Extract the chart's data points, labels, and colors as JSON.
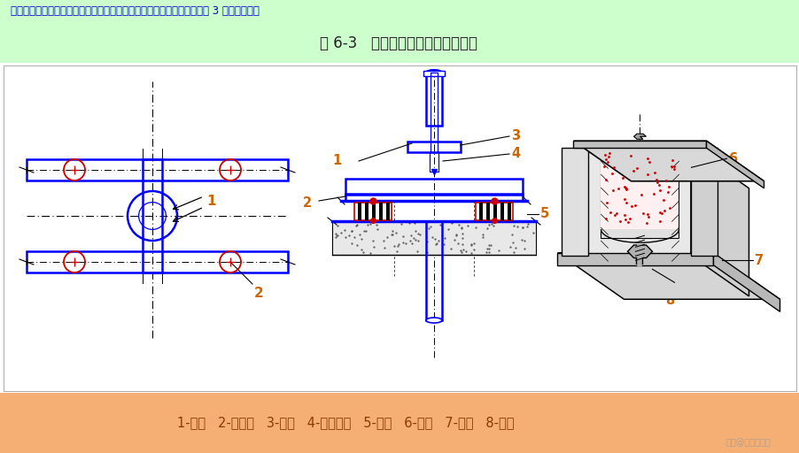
{
  "top_text": "当垂直管道穿越楼板的固定方式可以防止钢管震动，型钢防震支架允许每 3 层设置一个。",
  "title": "图 6-3   垂直管道的型钢减震吊架。",
  "bottom_text": "1-焊接   2-减振座   3-槽钢   4-镀锌螺栓   5-槽钢   6-橡胶   7-槽钢   8-螺母",
  "watermark": "头条@建筑界一哥",
  "top_bg": "#ccffcc",
  "main_bg": "#ffffff",
  "bottom_bg": "#f5af74",
  "blue": "#0000ff",
  "red": "#cc0000",
  "black": "#000000",
  "label_orange": "#cc6600"
}
